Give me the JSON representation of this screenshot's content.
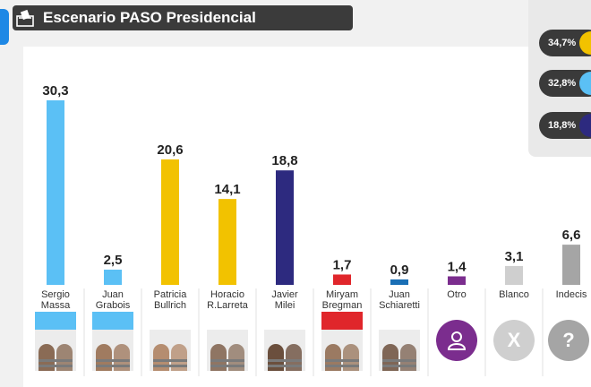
{
  "header": {
    "title": "Escenario PASO Presidencial",
    "icon": "ballot-box-icon"
  },
  "legend": [
    {
      "value": "34,7%",
      "color": "#f2c200"
    },
    {
      "value": "32,8%",
      "color": "#5bc0f5"
    },
    {
      "value": "18,8%",
      "color": "#2d2a7f"
    }
  ],
  "chart_data": {
    "type": "bar",
    "title": "Escenario PASO Presidencial",
    "categories": [
      "Sergio Massa",
      "Juan Grabois",
      "Patricia Bullrich",
      "Horacio R.Larreta",
      "Javier Milei",
      "Miryam Bregman",
      "Juan Schiaretti",
      "Otro",
      "Blanco",
      "Indecisos"
    ],
    "tick_lines": [
      [
        "Sergio",
        "Massa"
      ],
      [
        "Juan",
        "Grabois"
      ],
      [
        "Patricia",
        "Bullrich"
      ],
      [
        "Horacio",
        "R.Larreta"
      ],
      [
        "Javier",
        "Milei"
      ],
      [
        "Miryam",
        "Bregman"
      ],
      [
        "Juan",
        "Schiaretti"
      ],
      [
        "Otro"
      ],
      [
        "Blanco"
      ],
      [
        "Indecis"
      ]
    ],
    "values": [
      30.3,
      2.5,
      20.6,
      14.1,
      18.8,
      1.7,
      0.9,
      1.4,
      3.1,
      6.6
    ],
    "value_labels": [
      "30,3",
      "2,5",
      "20,6",
      "14,1",
      "18,8",
      "1,7",
      "0,9",
      "1,4",
      "3,1",
      "6,6"
    ],
    "colors": [
      "#5bc0f5",
      "#5bc0f5",
      "#f2c200",
      "#f2c200",
      "#2d2a7f",
      "#e0262b",
      "#1a6fb5",
      "#7b2d8e",
      "#cfcfcf",
      "#a5a5a5"
    ],
    "ylim": [
      0,
      30.3
    ],
    "grid": false,
    "xlabel": "",
    "ylabel": ""
  },
  "cards": [
    {
      "banner": "#5bc0f5",
      "photo": "#8a6b55"
    },
    {
      "banner": "#5bc0f5",
      "photo": "#a07b60"
    },
    {
      "banner": "#ffffff",
      "photo": "#b58d70"
    },
    {
      "banner": "#ffffff",
      "photo": "#8f7563"
    },
    {
      "banner": "#ffffff",
      "photo": "#6b4f3d"
    },
    {
      "banner": "#e0262b",
      "photo": "#9b7a62"
    },
    {
      "banner": "#ffffff",
      "photo": "#7f6656"
    }
  ],
  "icons": [
    {
      "name": "person-icon",
      "symbol": "",
      "color": "#7b2d8e"
    },
    {
      "name": "blank-vote-icon",
      "symbol": "X",
      "color": "#cfcfcf"
    },
    {
      "name": "question-icon",
      "symbol": "?",
      "color": "#a5a5a5"
    }
  ]
}
